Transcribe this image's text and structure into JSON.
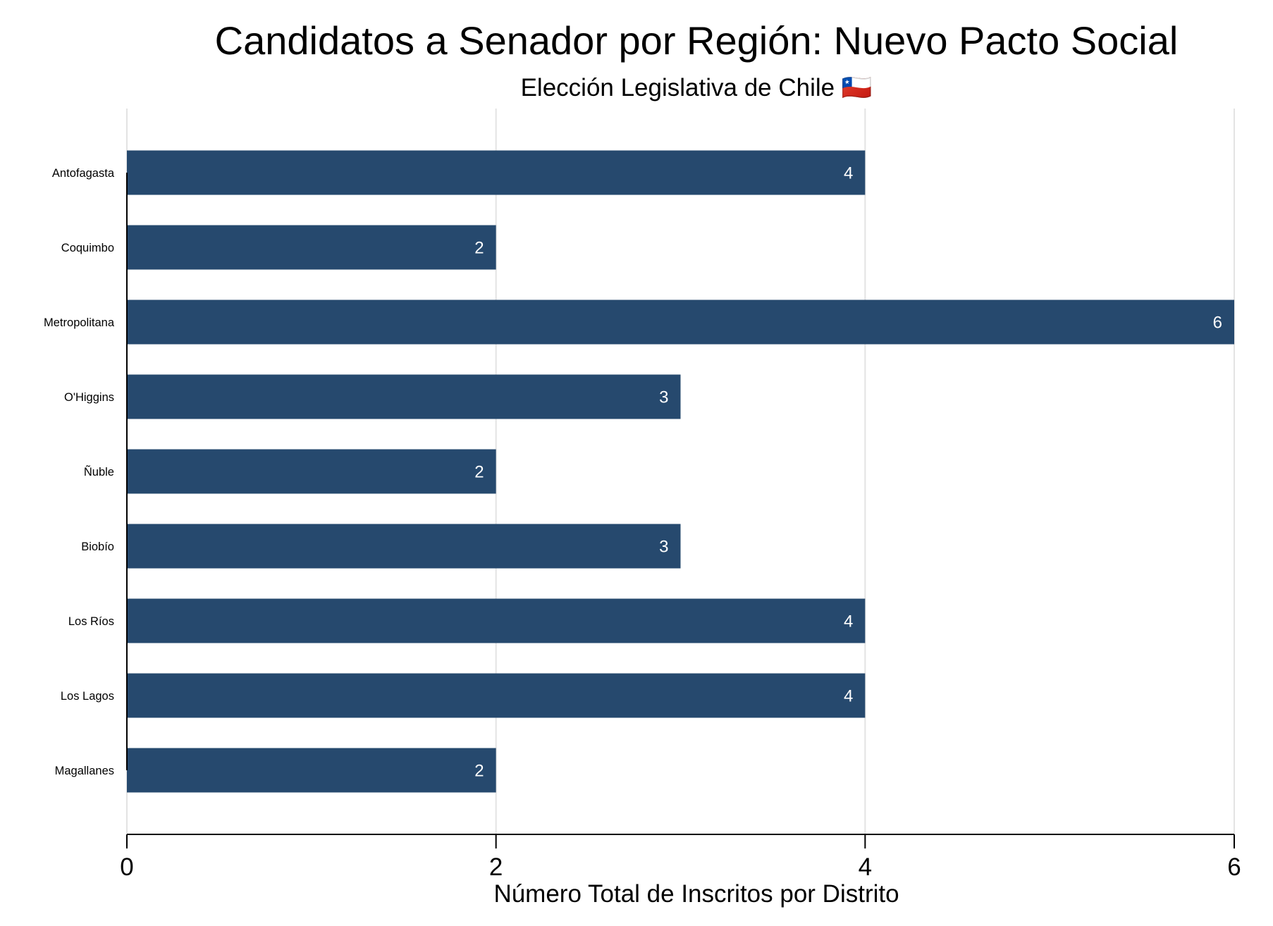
{
  "chart_data": {
    "type": "bar",
    "orientation": "horizontal",
    "title": "Candidatos a Senador por Región: Nuevo Pacto Social",
    "subtitle": "Elección Legislativa de Chile 🇨🇱",
    "xlabel": "Número Total de Inscritos por Distrito",
    "ylabel": "",
    "categories": [
      "Antofagasta",
      "Coquimbo",
      "Metropolitana",
      "O'Higgins",
      "Ñuble",
      "Biobío",
      "Los Ríos",
      "Los Lagos",
      "Magallanes"
    ],
    "values": [
      4,
      2,
      6,
      3,
      2,
      3,
      4,
      4,
      2
    ],
    "data_labels": [
      "4",
      "2",
      "6",
      "3",
      "2",
      "3",
      "4",
      "4",
      "2"
    ],
    "xlim": [
      0,
      6
    ],
    "xticks": [
      0,
      2,
      4,
      6
    ],
    "xtick_labels": [
      "0",
      "2",
      "4",
      "6"
    ],
    "grid": "vertical",
    "legend": "none",
    "bar_color": "#26496E",
    "grid_color": "#E3E3E3"
  }
}
